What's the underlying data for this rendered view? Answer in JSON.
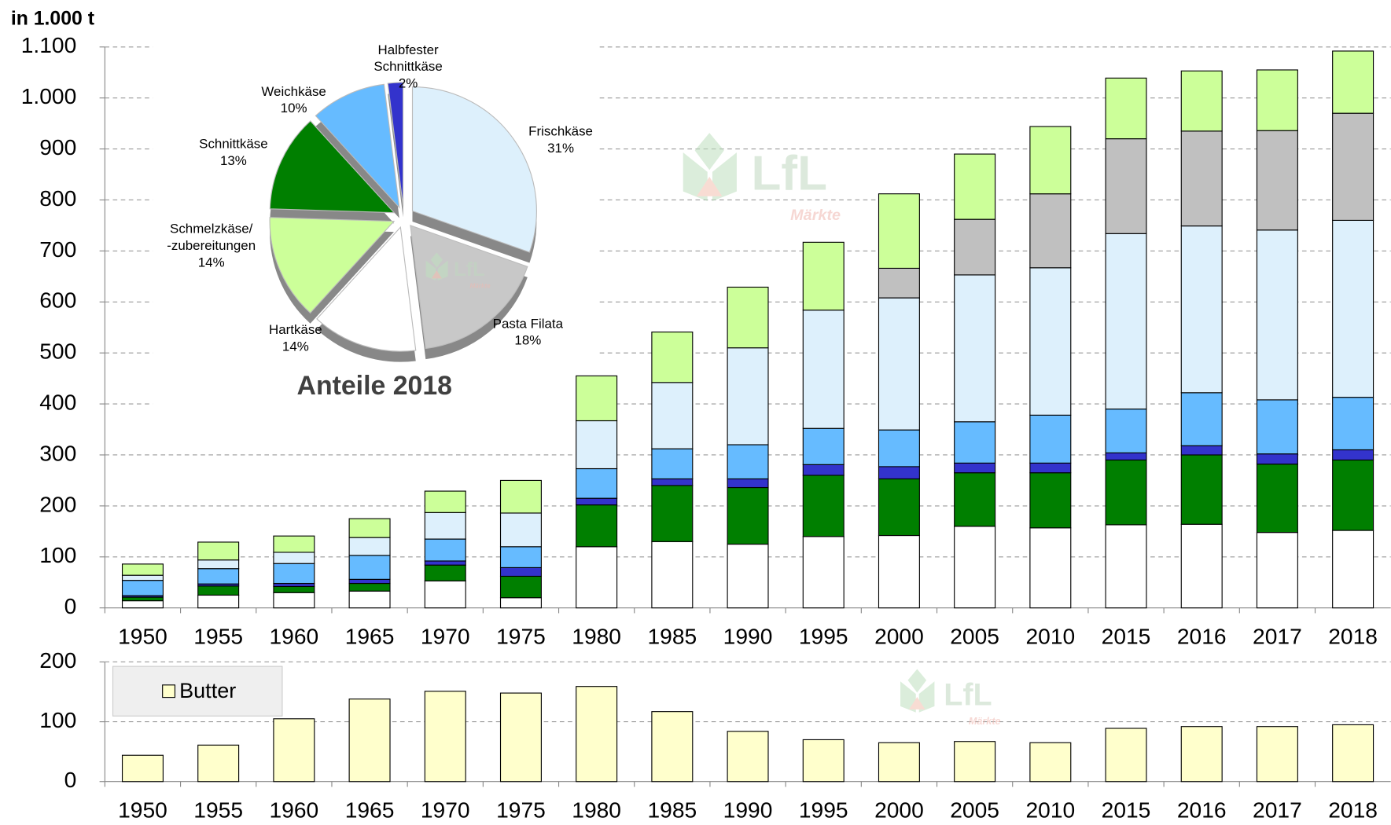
{
  "chart_data": [
    {
      "type": "stacked_bar",
      "ylabel": "in 1.000 t",
      "categories": [
        "1950",
        "1955",
        "1960",
        "1965",
        "1970",
        "1975",
        "1980",
        "1985",
        "1990",
        "1995",
        "2000",
        "2005",
        "2010",
        "2015",
        "2016",
        "2017",
        "2018"
      ],
      "series": [
        {
          "color": "#ffffff",
          "values": [
            14,
            25,
            30,
            33,
            53,
            20,
            120,
            130,
            125,
            140,
            142,
            160,
            157,
            163,
            164,
            148,
            152
          ]
        },
        {
          "color": "#007f00",
          "values": [
            7,
            18,
            12,
            15,
            31,
            42,
            82,
            110,
            111,
            120,
            111,
            105,
            108,
            127,
            136,
            134,
            138
          ]
        },
        {
          "color": "#3333cc",
          "values": [
            3,
            4,
            6,
            8,
            8,
            17,
            13,
            13,
            17,
            21,
            24,
            19,
            19,
            14,
            18,
            20,
            20
          ]
        },
        {
          "color": "#66bbff",
          "values": [
            30,
            30,
            39,
            47,
            43,
            41,
            58,
            59,
            67,
            71,
            72,
            81,
            94,
            86,
            104,
            106,
            103
          ]
        },
        {
          "color": "#ddf0fc",
          "values": [
            10,
            17,
            22,
            35,
            52,
            66,
            94,
            130,
            190,
            232,
            259,
            288,
            289,
            344,
            327,
            333,
            347
          ]
        },
        {
          "color": "#c0c0c0",
          "values": [
            0,
            0,
            0,
            0,
            0,
            0,
            0,
            0,
            0,
            0,
            58,
            109,
            145,
            186,
            186,
            195,
            210
          ]
        },
        {
          "color": "#ccff99",
          "values": [
            22,
            35,
            32,
            37,
            42,
            64,
            88,
            99,
            119,
            133,
            146,
            128,
            132,
            119,
            118,
            119,
            122
          ]
        }
      ],
      "ylim": [
        0,
        1100
      ],
      "yticks": [
        0,
        100,
        200,
        300,
        400,
        500,
        600,
        700,
        800,
        900,
        {
          "value": 1000,
          "label": "1.000"
        },
        {
          "value": 1100,
          "label": "1.100"
        }
      ],
      "grid": true
    },
    {
      "type": "pie",
      "title": "Anteile 2018",
      "categories": [
        "Frischkäse",
        "Pasta Filata",
        "Hartkäse",
        "Schmelzkäse/\n-zubereitungen",
        "Schnittkäse",
        "Weichkäse",
        "Halbfester\nSchnittkäse"
      ],
      "values": [
        31,
        18,
        14,
        14,
        13,
        10,
        2
      ],
      "value_labels": [
        "31%",
        "18%",
        "14%",
        "14%",
        "13%",
        "10%",
        "2%"
      ],
      "colors": [
        "#ddf0fc",
        "#c8c8c8",
        "#ffffff",
        "#ccff99",
        "#007f00",
        "#66bbff",
        "#3333cc"
      ]
    },
    {
      "type": "bar",
      "categories": [
        "1950",
        "1955",
        "1960",
        "1965",
        "1970",
        "1975",
        "1980",
        "1985",
        "1990",
        "1995",
        "2000",
        "2005",
        "2010",
        "2015",
        "2016",
        "2017",
        "2018"
      ],
      "series": [
        {
          "name": "Butter",
          "color": "#ffffcc",
          "values": [
            44,
            61,
            105,
            138,
            151,
            148,
            159,
            117,
            84,
            70,
            65,
            67,
            65,
            89,
            92,
            92,
            95
          ]
        }
      ],
      "ylim": [
        0,
        200
      ],
      "yticks": [
        0,
        100,
        200
      ],
      "grid": true
    }
  ],
  "watermark": {
    "logo": "LfL",
    "sub": "Märkte"
  }
}
